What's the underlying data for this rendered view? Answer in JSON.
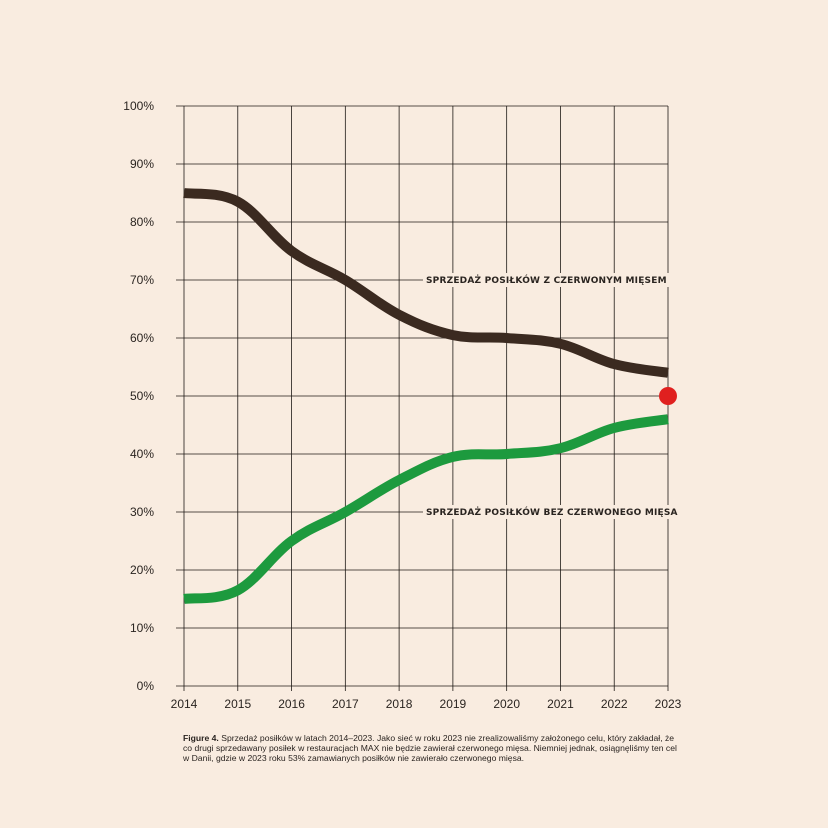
{
  "colors": {
    "background": "#f9ece0",
    "red_meat_line": "#3b2a20",
    "no_red_meat_line": "#1d9a3e",
    "target_dot": "#e0201f",
    "grid": "#1f1a16"
  },
  "chart_data": {
    "type": "line",
    "x": [
      2014,
      2015,
      2016,
      2017,
      2018,
      2019,
      2020,
      2021,
      2022,
      2023
    ],
    "x_tick_labels": [
      "2014",
      "2015",
      "2016",
      "2017",
      "2018",
      "2019",
      "2020",
      "2021",
      "2022",
      "2023"
    ],
    "y_tick_labels": [
      "0%",
      "10%",
      "20%",
      "30%",
      "40%",
      "50%",
      "60%",
      "70%",
      "80%",
      "90%",
      "100%"
    ],
    "ylim": [
      0,
      100
    ],
    "y_unit": "%",
    "grid": true,
    "series": [
      {
        "key": "red_meat",
        "name": "SPRZEDAŻ POSIŁKÓW Z CZERWONYM MIĘSEM",
        "values": [
          85,
          83.5,
          75,
          70,
          64,
          60.5,
          60,
          59,
          55.5,
          54
        ]
      },
      {
        "key": "no_red_meat",
        "name": "SPRZEDAŻ POSIŁKÓW BEZ CZERWONEGO MIĘSA",
        "values": [
          15,
          16.5,
          25,
          30,
          35.5,
          39.5,
          40,
          41,
          44.5,
          46
        ]
      }
    ],
    "target_marker": {
      "x": 2023,
      "y": 50
    }
  },
  "caption": {
    "label": "Figure 4.",
    "text": " Sprzedaż posiłków w latach 2014–2023. Jako sieć w roku 2023 nie zrealizowaliśmy założonego celu, który zakładał, że co drugi sprzedawany posiłek w restauracjach MAX nie będzie zawierał czerwonego mięsa. Niemniej jednak, osiągnęliśmy ten cel w Danii, gdzie w 2023 roku 53% zamawianych posiłków nie zawierało czerwonego mięsa."
  }
}
